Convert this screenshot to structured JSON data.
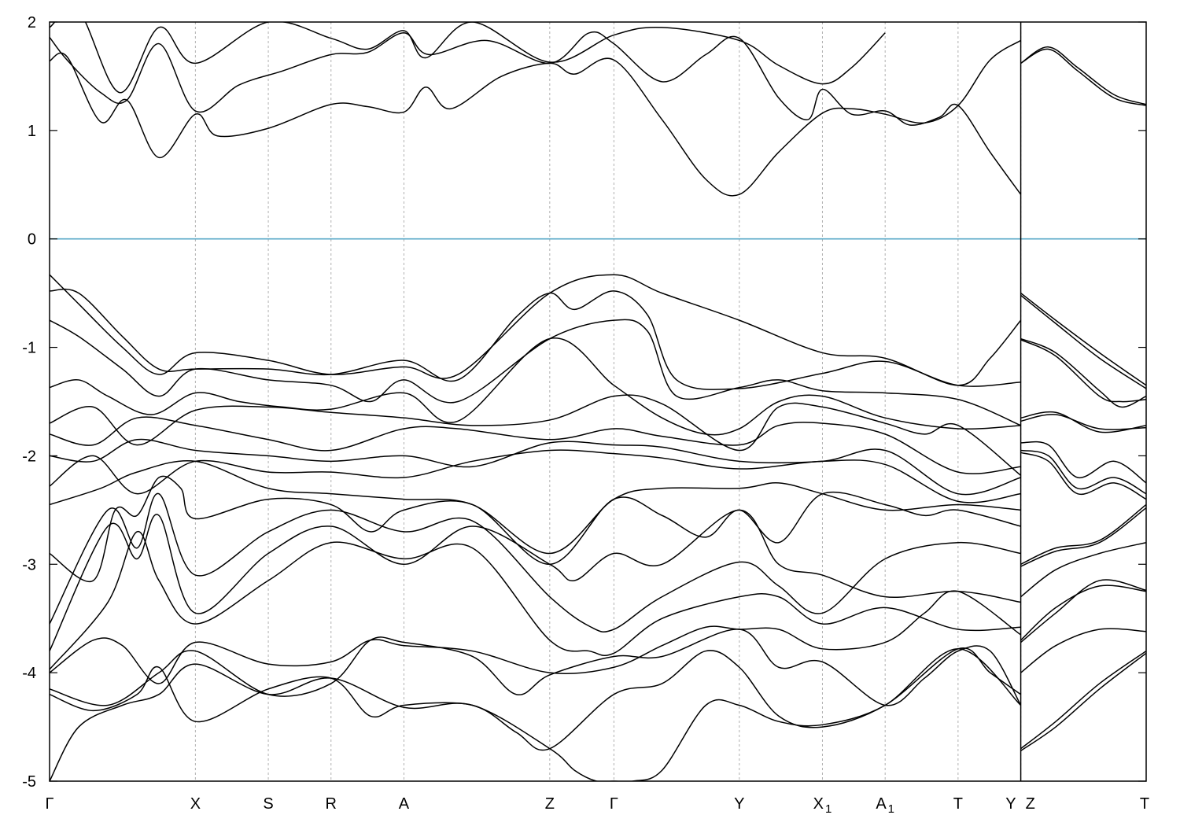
{
  "chart_data": {
    "type": "line",
    "title": "",
    "xlabel": "",
    "ylabel": "",
    "ylim": [
      -5,
      2
    ],
    "yticks": [
      2,
      1,
      0,
      -1,
      -2,
      -3,
      -4,
      -5
    ],
    "ytick_labels": [
      "2",
      "1",
      "0",
      "-1",
      "-2",
      "-3",
      "-4",
      "-5"
    ],
    "kpath": [
      {
        "base": "Γ",
        "sub": "",
        "x": 0.0
      },
      {
        "base": "X",
        "sub": "",
        "x": 1.0
      },
      {
        "base": "S",
        "sub": "",
        "x": 1.5
      },
      {
        "base": "R",
        "sub": "",
        "x": 1.93
      },
      {
        "base": "A",
        "sub": "",
        "x": 2.43
      },
      {
        "base": "Z",
        "sub": "",
        "x": 3.43
      },
      {
        "base": "Γ",
        "sub": "",
        "x": 3.87
      },
      {
        "base": "Y",
        "sub": "",
        "x": 4.73
      },
      {
        "base": "X",
        "sub": "1",
        "x": 5.3
      },
      {
        "base": "A",
        "sub": "1",
        "x": 5.73
      },
      {
        "base": "T",
        "sub": "",
        "x": 6.23
      },
      {
        "base": "Y",
        "sub": "",
        "x": 6.66
      },
      {
        "base": "Z",
        "sub": "",
        "x": 6.66
      },
      {
        "base": "T",
        "sub": "",
        "x": 7.52
      }
    ],
    "path_break_x": 6.66,
    "fermi_level": 0,
    "fermi_color": "#5aa9c8",
    "line_color": "#000000",
    "grid": "vertical dotted at k-points",
    "series": [
      {
        "x": [
          0,
          0.12,
          0.35,
          0.53,
          0.75,
          1.0,
          1.15,
          1.5,
          1.93,
          2.18,
          2.43,
          2.58,
          2.75,
          3.1,
          3.43,
          3.6,
          3.87,
          4.2,
          4.5,
          4.73,
          5.0,
          5.3,
          5.5,
          5.73,
          6.0,
          6.23,
          6.45,
          6.66
        ],
        "y": [
          1.64,
          1.68,
          1.08,
          1.28,
          0.75,
          1.15,
          0.95,
          1.02,
          1.24,
          1.22,
          1.17,
          1.4,
          1.2,
          1.5,
          1.62,
          1.52,
          1.65,
          1.1,
          0.55,
          0.41,
          0.8,
          1.16,
          1.2,
          1.15,
          1.07,
          1.23,
          1.65,
          1.83
        ]
      },
      {
        "x": [
          0,
          0.12,
          0.35,
          0.53,
          0.75,
          1.0,
          1.3,
          1.6,
          1.93,
          2.18,
          2.43,
          2.6,
          3.0,
          3.43,
          3.7,
          3.87,
          4.2,
          4.5,
          4.73,
          5.0,
          5.2,
          5.3,
          5.5,
          5.73,
          5.9,
          6.1,
          6.23,
          6.45,
          6.66
        ],
        "y": [
          1.86,
          1.65,
          1.35,
          1.28,
          1.8,
          1.18,
          1.42,
          1.55,
          1.7,
          1.72,
          1.9,
          1.7,
          1.83,
          1.62,
          1.9,
          1.8,
          1.45,
          1.7,
          1.85,
          1.3,
          1.1,
          1.38,
          1.15,
          1.18,
          1.05,
          1.12,
          1.23,
          0.8,
          0.41
        ]
      },
      {
        "x": [
          0,
          0.2,
          0.48,
          0.75,
          1.0,
          1.5,
          1.93,
          2.18,
          2.43,
          2.58,
          2.9,
          3.43,
          3.87,
          4.2,
          4.73,
          5.0,
          5.3,
          5.5,
          5.73
        ],
        "y": [
          1.95,
          2.1,
          1.35,
          1.95,
          1.62,
          2.0,
          1.85,
          1.75,
          1.92,
          1.67,
          2.0,
          1.63,
          1.88,
          1.95,
          1.83,
          1.6,
          1.43,
          1.58,
          1.9
        ]
      },
      {
        "x": [
          6.66,
          6.85,
          7.05,
          7.3,
          7.52
        ],
        "y": [
          1.62,
          1.75,
          1.55,
          1.3,
          1.23
        ]
      },
      {
        "x": [
          6.66,
          6.85,
          7.05,
          7.3,
          7.52
        ],
        "y": [
          1.62,
          1.77,
          1.58,
          1.33,
          1.24
        ]
      },
      {
        "x": [
          0,
          0.2,
          0.5,
          0.75,
          1.0,
          1.5,
          1.93,
          2.43,
          2.8,
          3.43,
          3.87,
          4.2,
          4.73,
          5.3,
          5.73,
          6.23,
          6.45,
          6.66
        ],
        "y": [
          -0.33,
          -0.6,
          -1.0,
          -1.25,
          -1.05,
          -1.12,
          -1.25,
          -1.18,
          -1.25,
          -0.5,
          -0.33,
          -0.5,
          -0.75,
          -1.05,
          -1.1,
          -1.35,
          -1.1,
          -0.75
        ]
      },
      {
        "x": [
          0,
          0.2,
          0.5,
          0.75,
          1.0,
          1.5,
          1.93,
          2.43,
          2.8,
          3.2,
          3.43,
          3.6,
          3.87,
          4.1,
          4.3,
          4.73,
          5.3,
          5.73,
          6.23,
          6.66
        ],
        "y": [
          -0.48,
          -0.5,
          -0.9,
          -1.2,
          -1.2,
          -1.2,
          -1.25,
          -1.12,
          -1.3,
          -0.72,
          -0.5,
          -0.65,
          -0.48,
          -0.7,
          -1.3,
          -1.38,
          -1.24,
          -1.13,
          -1.35,
          -1.32
        ]
      },
      {
        "x": [
          0,
          0.2,
          0.5,
          0.75,
          1.0,
          1.5,
          1.93,
          2.2,
          2.43,
          2.8,
          3.43,
          3.87,
          4.1,
          4.3,
          4.73,
          5.0,
          5.3,
          5.73,
          6.23,
          6.66
        ],
        "y": [
          -0.75,
          -0.9,
          -1.2,
          -1.45,
          -1.2,
          -1.3,
          -1.35,
          -1.5,
          -1.3,
          -1.5,
          -0.92,
          -0.75,
          -0.85,
          -1.45,
          -1.37,
          -1.3,
          -1.4,
          -1.42,
          -1.48,
          -1.72
        ]
      },
      {
        "x": [
          0,
          0.2,
          0.4,
          0.7,
          1.0,
          1.3,
          1.6,
          1.93,
          2.43,
          2.8,
          3.43,
          3.87,
          4.2,
          4.5,
          4.73,
          5.0,
          5.3,
          5.73,
          6.23,
          6.66
        ],
        "y": [
          -1.37,
          -1.3,
          -1.45,
          -1.62,
          -1.42,
          -1.5,
          -1.55,
          -1.57,
          -1.42,
          -1.68,
          -0.92,
          -1.35,
          -1.65,
          -1.8,
          -1.75,
          -1.5,
          -1.45,
          -1.65,
          -1.75,
          -1.72
        ]
      },
      {
        "x": [
          0,
          0.3,
          0.6,
          1.0,
          1.5,
          1.93,
          2.43,
          2.9,
          3.43,
          3.87,
          4.2,
          4.73,
          5.0,
          5.3,
          5.73,
          6.0,
          6.23,
          6.66
        ],
        "y": [
          -1.7,
          -1.55,
          -1.9,
          -1.58,
          -1.55,
          -1.6,
          -1.65,
          -1.72,
          -1.67,
          -1.45,
          -1.52,
          -1.95,
          -1.55,
          -1.55,
          -1.7,
          -1.8,
          -1.72,
          -2.18
        ]
      },
      {
        "x": [
          0,
          0.3,
          0.6,
          1.0,
          1.5,
          1.93,
          2.43,
          2.8,
          3.43,
          3.87,
          4.2,
          4.73,
          5.0,
          5.3,
          5.73,
          6.23,
          6.66
        ],
        "y": [
          -1.8,
          -1.9,
          -1.65,
          -1.72,
          -1.85,
          -1.95,
          -1.75,
          -1.75,
          -1.85,
          -1.75,
          -1.82,
          -1.9,
          -1.72,
          -1.7,
          -1.8,
          -2.15,
          -2.1
        ]
      },
      {
        "x": [
          0,
          0.3,
          0.6,
          1.0,
          1.5,
          1.93,
          2.43,
          2.9,
          3.43,
          3.87,
          4.2,
          4.73,
          5.3,
          5.73,
          6.23,
          6.66
        ],
        "y": [
          -2.0,
          -2.05,
          -1.85,
          -1.95,
          -2.0,
          -2.05,
          -2.0,
          -2.1,
          -1.88,
          -1.9,
          -1.92,
          -2.05,
          -2.05,
          -1.95,
          -2.35,
          -2.2
        ]
      },
      {
        "x": [
          0,
          0.3,
          0.6,
          1.0,
          1.5,
          1.93,
          2.43,
          2.9,
          3.43,
          3.87,
          4.2,
          4.73,
          5.3,
          5.73,
          6.23,
          6.66
        ],
        "y": [
          -2.28,
          -2.0,
          -2.35,
          -2.05,
          -2.15,
          -2.15,
          -2.2,
          -2.05,
          -1.95,
          -1.98,
          -2.02,
          -2.12,
          -2.05,
          -2.08,
          -2.42,
          -2.35
        ]
      },
      {
        "x": [
          0,
          0.35,
          0.6,
          1.0,
          1.5,
          1.93,
          2.43,
          2.9,
          3.43,
          3.87,
          4.2,
          4.73,
          5.0,
          5.3,
          5.73,
          6.23,
          6.66
        ],
        "y": [
          -2.45,
          -2.3,
          -2.15,
          -2.05,
          -2.3,
          -2.35,
          -2.4,
          -2.45,
          -2.9,
          -2.4,
          -2.3,
          -2.3,
          -2.25,
          -2.35,
          -2.5,
          -2.45,
          -2.5
        ]
      },
      {
        "x": [
          0,
          0.3,
          0.45,
          0.6,
          0.75,
          0.9,
          1.0,
          1.5,
          1.93,
          2.2,
          2.43,
          2.9,
          3.43,
          3.87,
          4.2,
          4.5,
          4.73,
          5.0,
          5.3,
          5.73,
          6.0,
          6.23,
          6.66
        ],
        "y": [
          -2.9,
          -3.15,
          -2.5,
          -2.55,
          -2.2,
          -2.3,
          -2.58,
          -2.4,
          -2.45,
          -2.7,
          -2.5,
          -2.45,
          -3.0,
          -2.4,
          -2.55,
          -2.75,
          -2.5,
          -2.8,
          -2.35,
          -2.45,
          -2.55,
          -2.5,
          -2.65
        ]
      },
      {
        "x": [
          0,
          0.4,
          0.6,
          0.75,
          1.0,
          1.5,
          1.93,
          2.43,
          2.9,
          3.43,
          3.7,
          3.87,
          4.2,
          4.73,
          5.0,
          5.3,
          5.73,
          6.23,
          6.66
        ],
        "y": [
          -3.55,
          -2.5,
          -2.85,
          -2.35,
          -3.1,
          -2.7,
          -2.5,
          -2.7,
          -2.6,
          -3.3,
          -3.57,
          -3.6,
          -3.3,
          -2.98,
          -3.2,
          -3.45,
          -2.95,
          -2.8,
          -2.9
        ]
      },
      {
        "x": [
          0,
          0.4,
          0.6,
          0.75,
          1.0,
          1.5,
          1.93,
          2.43,
          2.9,
          3.43,
          3.6,
          3.87,
          4.2,
          4.73,
          5.0,
          5.3,
          5.73,
          6.23,
          6.66
        ],
        "y": [
          -3.8,
          -2.65,
          -2.95,
          -2.55,
          -3.45,
          -2.9,
          -2.65,
          -3.0,
          -2.65,
          -3.0,
          -3.15,
          -2.9,
          -3.0,
          -2.5,
          -3.0,
          -3.1,
          -3.3,
          -3.25,
          -3.35
        ]
      },
      {
        "x": [
          0,
          0.4,
          0.6,
          0.75,
          1.0,
          1.5,
          1.93,
          2.43,
          2.9,
          3.43,
          3.7,
          3.87,
          4.2,
          4.73,
          5.0,
          5.3,
          5.73,
          6.23,
          6.66
        ],
        "y": [
          -3.97,
          -3.35,
          -2.7,
          -3.15,
          -3.55,
          -3.15,
          -2.8,
          -2.95,
          -2.85,
          -3.7,
          -3.8,
          -3.82,
          -3.5,
          -3.3,
          -3.3,
          -3.55,
          -3.4,
          -3.6,
          -3.58
        ]
      },
      {
        "x": [
          0,
          0.3,
          0.5,
          0.75,
          1.0,
          1.5,
          1.93,
          2.2,
          2.43,
          2.9,
          3.43,
          3.87,
          4.2,
          4.5,
          4.73,
          5.0,
          5.3,
          5.73,
          6.0,
          6.23,
          6.66
        ],
        "y": [
          -4.0,
          -3.7,
          -3.75,
          -4.1,
          -3.72,
          -3.92,
          -3.9,
          -3.7,
          -3.75,
          -3.8,
          -4.0,
          -3.95,
          -3.75,
          -3.58,
          -3.6,
          -3.6,
          -3.78,
          -3.72,
          -3.45,
          -3.25,
          -3.65
        ]
      },
      {
        "x": [
          0,
          0.4,
          0.75,
          1.0,
          1.5,
          1.93,
          2.2,
          2.43,
          2.9,
          3.2,
          3.43,
          3.87,
          4.2,
          4.73,
          5.0,
          5.3,
          5.73,
          6.0,
          6.23,
          6.45,
          6.66
        ],
        "y": [
          -4.15,
          -4.3,
          -4.0,
          -3.8,
          -4.2,
          -4.1,
          -3.7,
          -3.72,
          -3.85,
          -4.2,
          -4.02,
          -3.85,
          -3.85,
          -3.6,
          -3.95,
          -3.9,
          -4.3,
          -4.05,
          -3.8,
          -3.8,
          -4.3
        ]
      },
      {
        "x": [
          0,
          0.3,
          0.6,
          0.75,
          1.0,
          1.5,
          1.93,
          2.2,
          2.43,
          2.9,
          3.2,
          3.43,
          3.87,
          4.2,
          4.5,
          4.73,
          5.0,
          5.3,
          5.73,
          6.23,
          6.45,
          6.66
        ],
        "y": [
          -4.2,
          -4.35,
          -4.2,
          -3.95,
          -4.45,
          -4.15,
          -4.05,
          -4.4,
          -4.3,
          -4.3,
          -4.55,
          -4.7,
          -4.2,
          -4.1,
          -3.8,
          -3.95,
          -4.4,
          -4.5,
          -4.3,
          -3.78,
          -4.0,
          -4.2
        ]
      },
      {
        "x": [
          0,
          0.2,
          0.5,
          0.75,
          1.0,
          1.5,
          1.93,
          2.43,
          2.9,
          3.43,
          3.6,
          3.75,
          3.87,
          4.0,
          4.2,
          4.5,
          4.73,
          5.0,
          5.3,
          5.73,
          6.23,
          6.66
        ],
        "y": [
          -5.0,
          -4.5,
          -4.3,
          -4.2,
          -3.92,
          -4.2,
          -4.05,
          -4.32,
          -4.3,
          -4.7,
          -4.9,
          -5.0,
          -5.0,
          -5.0,
          -4.9,
          -4.3,
          -4.3,
          -4.45,
          -4.48,
          -4.3,
          -3.78,
          -4.3
        ]
      },
      {
        "x": [
          6.66,
          6.9,
          7.2,
          7.52
        ],
        "y": [
          -0.5,
          -0.75,
          -1.05,
          -1.35
        ]
      },
      {
        "x": [
          6.66,
          6.9,
          7.2,
          7.52
        ],
        "y": [
          -0.52,
          -0.78,
          -1.1,
          -1.38
        ]
      },
      {
        "x": [
          6.66,
          6.9,
          7.2,
          7.35,
          7.52
        ],
        "y": [
          -0.92,
          -1.05,
          -1.4,
          -1.55,
          -1.45
        ]
      },
      {
        "x": [
          6.66,
          6.9,
          7.2,
          7.35,
          7.52
        ],
        "y": [
          -0.93,
          -1.08,
          -1.45,
          -1.5,
          -1.48
        ]
      },
      {
        "x": [
          6.66,
          6.9,
          7.2,
          7.52
        ],
        "y": [
          -1.65,
          -1.6,
          -1.78,
          -1.72
        ]
      },
      {
        "x": [
          6.66,
          6.9,
          7.2,
          7.52
        ],
        "y": [
          -1.68,
          -1.62,
          -1.75,
          -1.74
        ]
      },
      {
        "x": [
          6.66,
          6.85,
          7.05,
          7.3,
          7.52
        ],
        "y": [
          -1.88,
          -1.9,
          -2.2,
          -2.05,
          -2.25
        ]
      },
      {
        "x": [
          6.66,
          6.85,
          7.05,
          7.3,
          7.52
        ],
        "y": [
          -1.95,
          -2.0,
          -2.3,
          -2.2,
          -2.35
        ]
      },
      {
        "x": [
          6.66,
          6.85,
          7.05,
          7.3,
          7.52
        ],
        "y": [
          -1.97,
          -2.05,
          -2.35,
          -2.25,
          -2.4
        ]
      },
      {
        "x": [
          6.66,
          6.9,
          7.2,
          7.52
        ],
        "y": [
          -3.0,
          -2.85,
          -2.78,
          -2.45
        ]
      },
      {
        "x": [
          6.66,
          6.9,
          7.2,
          7.52
        ],
        "y": [
          -3.02,
          -2.88,
          -2.8,
          -2.48
        ]
      },
      {
        "x": [
          6.66,
          6.9,
          7.2,
          7.52
        ],
        "y": [
          -3.3,
          -3.05,
          -2.9,
          -2.8
        ]
      },
      {
        "x": [
          6.66,
          6.9,
          7.2,
          7.52
        ],
        "y": [
          -3.7,
          -3.4,
          -3.2,
          -3.25
        ]
      },
      {
        "x": [
          6.66,
          6.9,
          7.2,
          7.52
        ],
        "y": [
          -3.72,
          -3.45,
          -3.15,
          -3.24
        ]
      },
      {
        "x": [
          6.66,
          6.9,
          7.2,
          7.52
        ],
        "y": [
          -4.0,
          -3.75,
          -3.6,
          -3.62
        ]
      },
      {
        "x": [
          6.66,
          6.9,
          7.2,
          7.52
        ],
        "y": [
          -4.7,
          -4.45,
          -4.1,
          -3.8
        ]
      },
      {
        "x": [
          6.66,
          6.9,
          7.2,
          7.52
        ],
        "y": [
          -4.72,
          -4.5,
          -4.15,
          -3.82
        ]
      }
    ]
  }
}
